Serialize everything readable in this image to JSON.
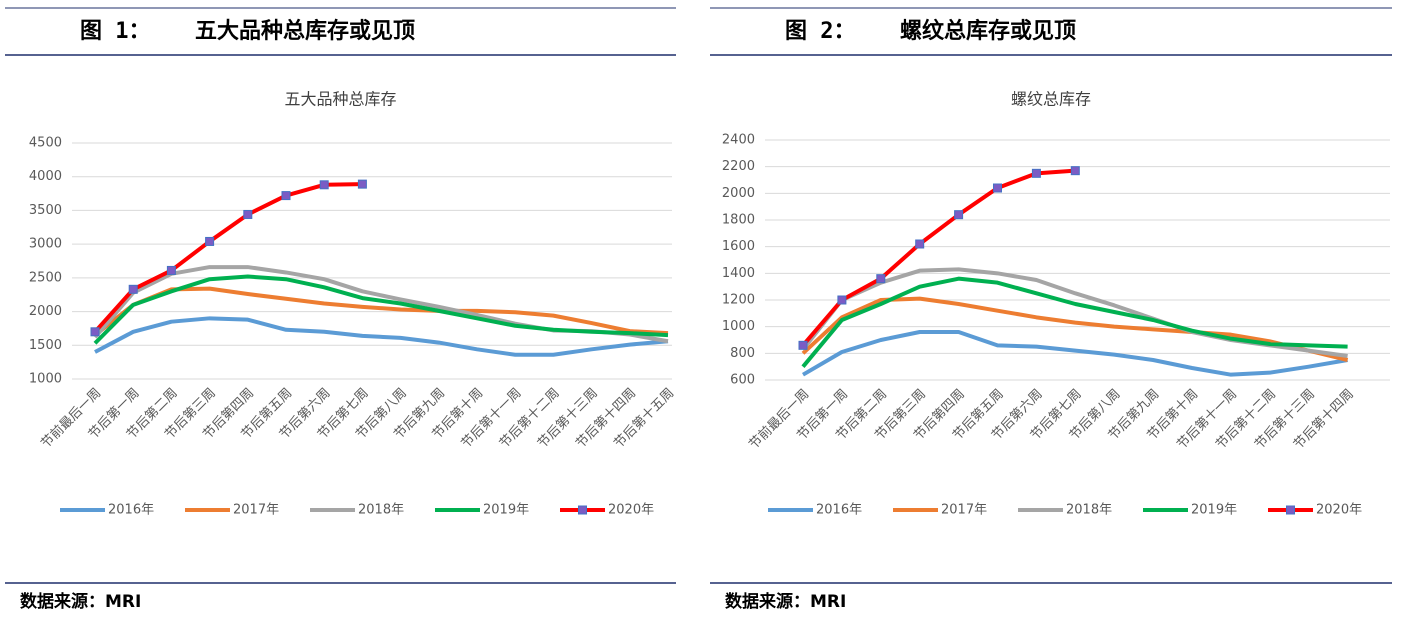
{
  "chart_data": [
    {
      "type": "line",
      "figure": "图 1：",
      "heading": "五大品种总库存或见顶",
      "title": "五大品种总库存",
      "source": "数据来源：MRI",
      "categories": [
        "节前最后一周",
        "节后第一周",
        "节后第二周",
        "节后第三周",
        "节后第四周",
        "节后第五周",
        "节后第六周",
        "节后第七周",
        "节后第八周",
        "节后第九周",
        "节后第十周",
        "节后第十一周",
        "节后第十二周",
        "节后第十三周",
        "节后第十四周",
        "节后第十五周"
      ],
      "ylim": [
        1000,
        4500
      ],
      "yticks": [
        1000,
        1500,
        2000,
        2500,
        3000,
        3500,
        4000,
        4500
      ],
      "grid": true,
      "legend": "bottom",
      "series": [
        {
          "name": "2016年",
          "color": "#5b9bd5",
          "values": [
            1400,
            1700,
            1850,
            1900,
            1880,
            1730,
            1700,
            1640,
            1610,
            1540,
            1440,
            1360,
            1360,
            1440,
            1510,
            1560
          ]
        },
        {
          "name": "2017年",
          "color": "#ed7d31",
          "values": [
            1650,
            2100,
            2330,
            2340,
            2260,
            2190,
            2120,
            2070,
            2030,
            2010,
            2010,
            1990,
            1940,
            1830,
            1710,
            1680
          ]
        },
        {
          "name": "2018年",
          "color": "#a5a5a5",
          "values": [
            1620,
            2280,
            2560,
            2660,
            2660,
            2580,
            2480,
            2300,
            2180,
            2070,
            1950,
            1820,
            1720,
            1710,
            1660,
            1560
          ]
        },
        {
          "name": "2019年",
          "color": "#00b050",
          "values": [
            1530,
            2100,
            2300,
            2480,
            2520,
            2480,
            2360,
            2200,
            2120,
            2010,
            1900,
            1790,
            1730,
            1700,
            1680,
            1650
          ]
        },
        {
          "name": "2020年",
          "color": "#ff0000",
          "marker": true,
          "values": [
            1700,
            2330,
            2610,
            3040,
            3440,
            3720,
            3880,
            3890,
            null,
            null,
            null,
            null,
            null,
            null,
            null,
            null
          ]
        }
      ]
    },
    {
      "type": "line",
      "figure": "图 2：",
      "heading": "螺纹总库存或见顶",
      "title": "螺纹总库存",
      "source": "数据来源：MRI",
      "categories": [
        "节前最后一周",
        "节后第一周",
        "节后第二周",
        "节后第三周",
        "节后第四周",
        "节后第五周",
        "节后第六周",
        "节后第七周",
        "节后第八周",
        "节后第九周",
        "节后第十周",
        "节后第十一周",
        "节后第十二周",
        "节后第十三周",
        "节后第十四周"
      ],
      "ylim": [
        600,
        2400
      ],
      "yticks": [
        600,
        800,
        1000,
        1200,
        1400,
        1600,
        1800,
        2000,
        2200,
        2400
      ],
      "grid": true,
      "legend": "bottom",
      "series": [
        {
          "name": "2016年",
          "color": "#5b9bd5",
          "values": [
            640,
            810,
            900,
            960,
            960,
            860,
            850,
            820,
            790,
            750,
            690,
            640,
            655,
            700,
            750
          ]
        },
        {
          "name": "2017年",
          "color": "#ed7d31",
          "values": [
            800,
            1070,
            1200,
            1210,
            1170,
            1120,
            1070,
            1030,
            1000,
            980,
            960,
            940,
            890,
            820,
            750
          ]
        },
        {
          "name": "2018年",
          "color": "#a5a5a5",
          "values": [
            830,
            1200,
            1330,
            1420,
            1430,
            1400,
            1350,
            1250,
            1160,
            1060,
            960,
            900,
            860,
            820,
            780
          ]
        },
        {
          "name": "2019年",
          "color": "#00b050",
          "values": [
            700,
            1050,
            1170,
            1300,
            1360,
            1330,
            1250,
            1170,
            1110,
            1050,
            970,
            910,
            870,
            860,
            850
          ]
        },
        {
          "name": "2020年",
          "color": "#ff0000",
          "marker": true,
          "values": [
            860,
            1200,
            1360,
            1620,
            1840,
            2040,
            2150,
            2170,
            null,
            null,
            null,
            null,
            null,
            null,
            null
          ]
        }
      ]
    }
  ]
}
